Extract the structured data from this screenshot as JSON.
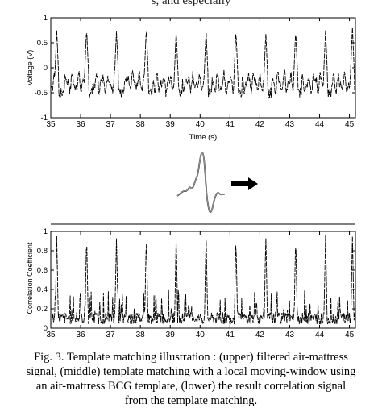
{
  "header_fragment": "s, and especially",
  "figure": {
    "panels": {
      "upper": {
        "ylabel": "Voltage (V)",
        "xlabel": "Time (s)"
      },
      "lower": {
        "ylabel": "Correlation Coefficient",
        "xlabel": ""
      }
    }
  },
  "chart_data": [
    {
      "type": "line",
      "panel": "upper",
      "xlabel": "Time (s)",
      "ylabel": "Voltage (V)",
      "xlim": [
        35,
        45.2
      ],
      "ylim": [
        -1,
        1
      ],
      "x_ticks": [
        "35",
        "36",
        "37",
        "38",
        "39",
        "40",
        "41",
        "42",
        "43",
        "44",
        "45"
      ],
      "y_ticks": [
        "-1",
        "-0.5",
        "0",
        "0.5",
        "1"
      ],
      "peak_times": [
        35.2,
        36.2,
        37.2,
        38.2,
        39.2,
        40.2,
        41.2,
        42.2,
        43.2,
        44.2,
        45.1
      ],
      "peak_values": [
        0.75,
        0.8,
        0.75,
        0.8,
        0.75,
        0.75,
        0.75,
        0.7,
        0.75,
        0.75,
        0.8
      ],
      "baseline": -0.3,
      "min_value": -0.85
    },
    {
      "type": "line",
      "panel": "lower",
      "xlabel": "",
      "ylabel": "Correlation Coefficient",
      "xlim": [
        35,
        45.2
      ],
      "ylim": [
        0,
        1
      ],
      "x_ticks": [
        "35",
        "36",
        "37",
        "38",
        "39",
        "40",
        "41",
        "42",
        "43",
        "44",
        "45"
      ],
      "y_ticks": [
        "0",
        "0.2",
        "0.4",
        "0.6",
        "0.8",
        "1"
      ],
      "peak_times": [
        35.2,
        36.2,
        37.2,
        38.2,
        39.2,
        40.2,
        41.2,
        42.2,
        43.2,
        44.2,
        45.1
      ],
      "peak_values": [
        0.95,
        0.97,
        0.96,
        0.97,
        0.96,
        0.97,
        0.95,
        0.96,
        0.96,
        0.96,
        0.95
      ],
      "secondary_range": [
        0.1,
        0.4
      ]
    }
  ],
  "caption_lines": [
    "Fig. 3. Template matching illustration : (upper) filtered air-mattress",
    "signal, (middle) template matching with a local moving-window using",
    "an air-mattress BCG template, (lower) the result correlation signal",
    "from the template matching."
  ]
}
